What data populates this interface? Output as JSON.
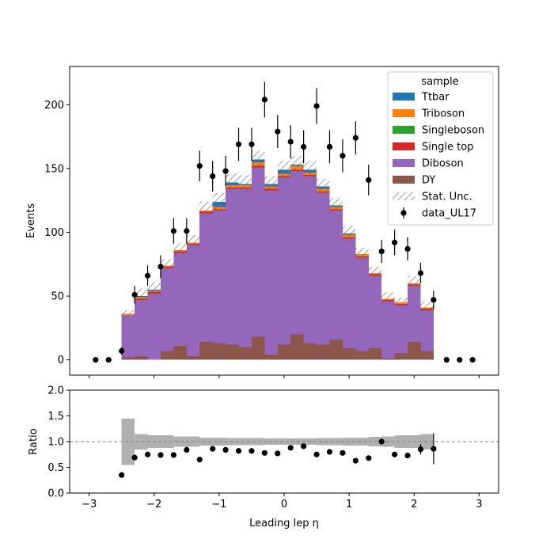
{
  "chart_data": {
    "type": "histogram-stacked-with-ratio",
    "x_label": "Leading lep η",
    "x_ticks": [
      -3,
      -2,
      -1,
      0,
      1,
      2,
      3
    ],
    "x_range": [
      -3.3,
      3.3
    ],
    "bin_edges": [
      -2.5,
      -2.3,
      -2.1,
      -1.9,
      -1.7,
      -1.5,
      -1.3,
      -1.1,
      -0.9,
      -0.7,
      -0.5,
      -0.3,
      -0.1,
      0.1,
      0.3,
      0.5,
      0.7,
      0.9,
      1.1,
      1.3,
      1.5,
      1.7,
      1.9,
      2.1,
      2.3,
      2.5
    ],
    "main": {
      "y_label": "Events",
      "y_range": [
        -12,
        230
      ],
      "y_ticks": [
        0,
        50,
        100,
        150,
        200
      ],
      "stack": [
        {
          "name": "DY",
          "color": "#8c564b",
          "values": [
            2,
            3,
            0,
            7,
            11,
            3,
            14,
            13,
            12,
            10,
            18,
            4,
            12,
            20,
            13,
            12,
            16,
            9,
            7,
            9,
            1,
            5,
            14,
            7,
            0
          ]
        },
        {
          "name": "Diboson",
          "color": "#9467bd",
          "values": [
            33,
            44,
            52,
            65,
            73,
            87,
            101,
            104,
            122,
            124,
            133,
            129,
            131,
            128,
            131,
            119,
            101,
            86,
            73,
            57,
            45,
            38,
            44,
            32,
            0
          ]
        },
        {
          "name": "Single top",
          "color": "#d62728",
          "values": [
            0,
            1,
            1,
            1,
            1,
            1,
            1,
            1,
            1,
            1,
            1,
            1,
            1,
            1,
            1,
            1,
            1,
            1,
            1,
            1,
            1,
            1,
            1,
            1,
            0
          ]
        },
        {
          "name": "Singleboson",
          "color": "#2ca02c",
          "values": [
            0,
            0,
            0,
            0,
            0,
            0,
            0,
            0,
            0,
            0,
            0,
            0,
            0,
            0,
            0,
            0,
            0,
            0,
            0,
            0,
            0,
            0,
            0,
            0,
            0
          ]
        },
        {
          "name": "Triboson",
          "color": "#ff7f0e",
          "values": [
            1,
            1,
            1,
            1,
            1,
            1,
            1,
            2,
            2,
            2,
            3,
            2,
            2,
            3,
            2,
            2,
            2,
            2,
            2,
            1,
            1,
            1,
            1,
            1,
            0
          ]
        },
        {
          "name": "Ttbar",
          "color": "#1f77b4",
          "values": [
            0,
            1,
            1,
            0,
            0,
            0,
            0,
            4,
            2,
            1,
            2,
            2,
            3,
            1,
            2,
            2,
            1,
            1,
            0,
            0,
            0,
            0,
            0,
            0,
            0
          ]
        }
      ],
      "stat_unc": [
        3,
        6,
        6,
        5,
        5,
        6,
        7,
        7,
        7,
        7,
        7,
        6,
        7,
        7,
        7,
        6,
        6,
        6,
        5,
        5,
        5,
        4,
        6,
        5,
        0
      ],
      "data_points": {
        "name": "data_UL17",
        "x": [
          -2.9,
          -2.7,
          -2.5,
          -2.3,
          -2.1,
          -1.9,
          -1.7,
          -1.5,
          -1.3,
          -1.1,
          -0.9,
          -0.7,
          -0.5,
          -0.3,
          -0.1,
          0.1,
          0.3,
          0.5,
          0.7,
          0.9,
          1.1,
          1.3,
          1.5,
          1.7,
          1.9,
          2.1,
          2.3,
          2.5,
          2.7,
          2.9
        ],
        "y": [
          0,
          0,
          7,
          51,
          66,
          73,
          101,
          101,
          152,
          144,
          148,
          169,
          169,
          204,
          179,
          171,
          167,
          199,
          167,
          160,
          174,
          141,
          85,
          92,
          87,
          68,
          47,
          0,
          0,
          0
        ],
        "err": [
          0,
          0,
          3,
          7,
          8,
          9,
          10,
          10,
          12,
          12,
          12,
          13,
          13,
          14,
          13,
          13,
          13,
          14,
          13,
          13,
          13,
          12,
          9,
          10,
          9,
          8,
          7,
          0,
          0,
          0
        ]
      }
    },
    "ratio": {
      "y_label": "Ratio",
      "y_range": [
        0.0,
        2.0
      ],
      "y_ticks": [
        0.0,
        0.5,
        1.0,
        1.5,
        2.0
      ],
      "reference_line": 1.0,
      "unc_band": [
        0.45,
        0.15,
        0.12,
        0.12,
        0.1,
        0.1,
        0.08,
        0.08,
        0.07,
        0.07,
        0.07,
        0.06,
        0.06,
        0.06,
        0.06,
        0.07,
        0.07,
        0.08,
        0.08,
        0.09,
        0.1,
        0.12,
        0.12,
        0.15,
        0.0
      ],
      "points": {
        "x": [
          -2.5,
          -2.3,
          -2.1,
          -1.9,
          -1.7,
          -1.5,
          -1.3,
          -1.1,
          -0.9,
          -0.7,
          -0.5,
          -0.3,
          -0.1,
          0.1,
          0.3,
          0.5,
          0.7,
          0.9,
          1.1,
          1.3,
          1.5,
          1.7,
          1.9,
          2.1,
          2.3
        ],
        "y": [
          0.35,
          0.69,
          0.75,
          0.74,
          0.74,
          0.84,
          0.65,
          0.86,
          0.84,
          0.82,
          0.82,
          0.78,
          0.77,
          0.88,
          0.91,
          0.75,
          0.8,
          0.78,
          0.63,
          0.68,
          1.0,
          0.75,
          0.73,
          0.85,
          0.86
        ],
        "err": [
          0,
          0,
          0.04,
          0.03,
          0,
          0,
          0,
          0,
          0,
          0,
          0,
          0,
          0,
          0,
          0,
          0,
          0,
          0,
          0,
          0,
          0,
          0,
          0,
          0.1,
          0.3
        ]
      }
    },
    "legend": {
      "title": "sample",
      "position": "top-right",
      "entries": [
        "Ttbar",
        "Triboson",
        "Singleboson",
        "Single top",
        "Diboson",
        "DY",
        "Stat. Unc.",
        "data_UL17"
      ]
    }
  }
}
